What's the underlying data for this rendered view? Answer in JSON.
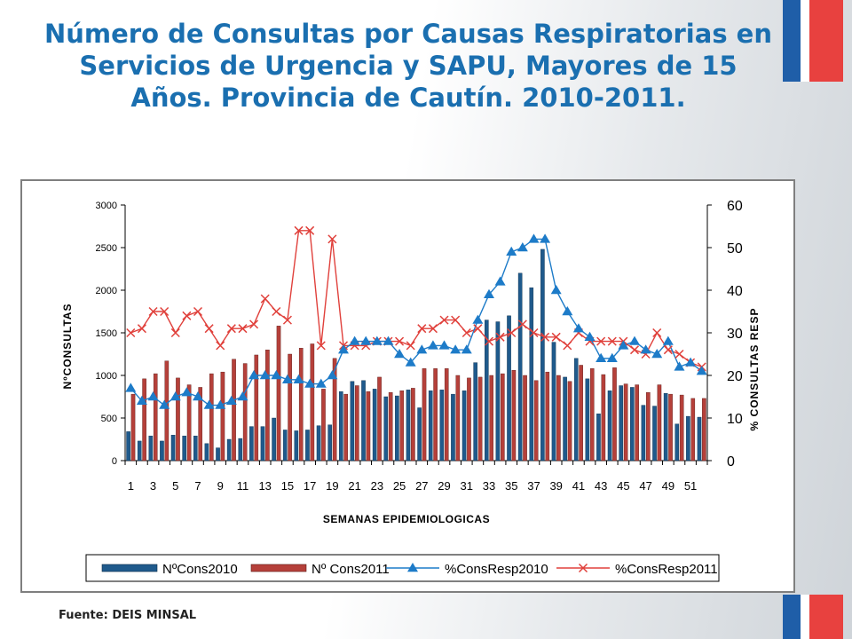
{
  "title": "Número de Consultas  por Causas Respiratorias en Servicios de Urgencia y SAPU, Mayores de 15 Años. Provincia de Cautín. 2010-2011.",
  "source": "Fuente: DEIS MINSAL",
  "colors": {
    "title": "#1a6fb0",
    "cons2010": "#1f5a8c",
    "cons2011": "#b5403a",
    "pct2010": "#1d7bc8",
    "pct2011": "#e0403b",
    "flag_blue": "#1f5ea8",
    "flag_red": "#e8413f"
  },
  "chart_data": {
    "type": "bar",
    "xlabel": "SEMANAS EPIDEMIOLOGICAS",
    "ylabel": "NºCONSULTAS",
    "y2label": "% CONSULTAS RESP",
    "ylim": [
      0,
      3000
    ],
    "y2lim": [
      0,
      60
    ],
    "yticks": [
      "0",
      "500",
      "1000",
      "1500",
      "2000",
      "2500",
      "3000"
    ],
    "y2ticks": [
      "0",
      "10",
      "20",
      "30",
      "40",
      "50",
      "60"
    ],
    "x": [
      1,
      2,
      3,
      4,
      5,
      6,
      7,
      8,
      9,
      10,
      11,
      12,
      13,
      14,
      15,
      16,
      17,
      18,
      19,
      20,
      21,
      22,
      23,
      24,
      25,
      26,
      27,
      28,
      29,
      30,
      31,
      32,
      33,
      34,
      35,
      36,
      37,
      38,
      39,
      40,
      41,
      42,
      43,
      44,
      45,
      46,
      47,
      48,
      49,
      50,
      51,
      52
    ],
    "xtick_labels": [
      "1",
      "3",
      "5",
      "7",
      "9",
      "11",
      "13",
      "15",
      "17",
      "19",
      "21",
      "23",
      "25",
      "27",
      "29",
      "31",
      "33",
      "35",
      "37",
      "39",
      "41",
      "43",
      "45",
      "47",
      "49",
      "51"
    ],
    "legend": [
      "NºCons2010",
      "Nº Cons2011",
      "%ConsResp2010",
      "%ConsResp2011"
    ],
    "legend_position": "bottom",
    "grid": false,
    "series": [
      {
        "name": "NºCons2010",
        "type": "bar",
        "axis": "left",
        "values": [
          340,
          230,
          290,
          230,
          300,
          290,
          290,
          200,
          150,
          250,
          260,
          400,
          400,
          500,
          360,
          350,
          360,
          410,
          420,
          810,
          930,
          940,
          840,
          750,
          760,
          830,
          620,
          820,
          830,
          780,
          820,
          1150,
          1650,
          1630,
          1700,
          2200,
          2030,
          2480,
          1390,
          980,
          1200,
          960,
          550,
          820,
          880,
          860,
          650,
          640,
          790,
          430,
          520,
          510
        ]
      },
      {
        "name": "Nº Cons2011",
        "type": "bar",
        "axis": "left",
        "values": [
          780,
          960,
          1020,
          1170,
          970,
          890,
          860,
          1020,
          1040,
          1190,
          1140,
          1240,
          1300,
          1580,
          1250,
          1320,
          1370,
          840,
          1200,
          780,
          880,
          810,
          980,
          800,
          820,
          850,
          1080,
          1080,
          1080,
          1000,
          970,
          980,
          1000,
          1020,
          1060,
          1000,
          940,
          1040,
          1000,
          930,
          1120,
          1080,
          1010,
          1090,
          900,
          890,
          800,
          890,
          780,
          770,
          730,
          730
        ]
      },
      {
        "name": "%ConsResp2010",
        "type": "line",
        "axis": "right",
        "values": [
          17,
          14,
          15,
          13,
          15,
          16,
          15,
          13,
          13,
          14,
          15,
          20,
          20,
          20,
          19,
          19,
          18,
          18,
          20,
          26,
          28,
          28,
          28,
          28,
          25,
          23,
          26,
          27,
          27,
          26,
          26,
          33,
          39,
          42,
          49,
          50,
          52,
          52,
          40,
          35,
          31,
          29,
          24,
          24,
          27,
          28,
          26,
          25,
          28,
          22,
          23,
          21
        ]
      },
      {
        "name": "%ConsResp2011",
        "type": "line",
        "axis": "right",
        "values": [
          30,
          31,
          35,
          35,
          30,
          34,
          35,
          31,
          27,
          31,
          31,
          32,
          38,
          35,
          33,
          54,
          54,
          27,
          52,
          27,
          27,
          27,
          28,
          28,
          28,
          27,
          31,
          31,
          33,
          33,
          30,
          31,
          28,
          29,
          30,
          32,
          30,
          29,
          29,
          27,
          30,
          28,
          28,
          28,
          28,
          26,
          25,
          30,
          26,
          25,
          23,
          22
        ]
      }
    ]
  }
}
